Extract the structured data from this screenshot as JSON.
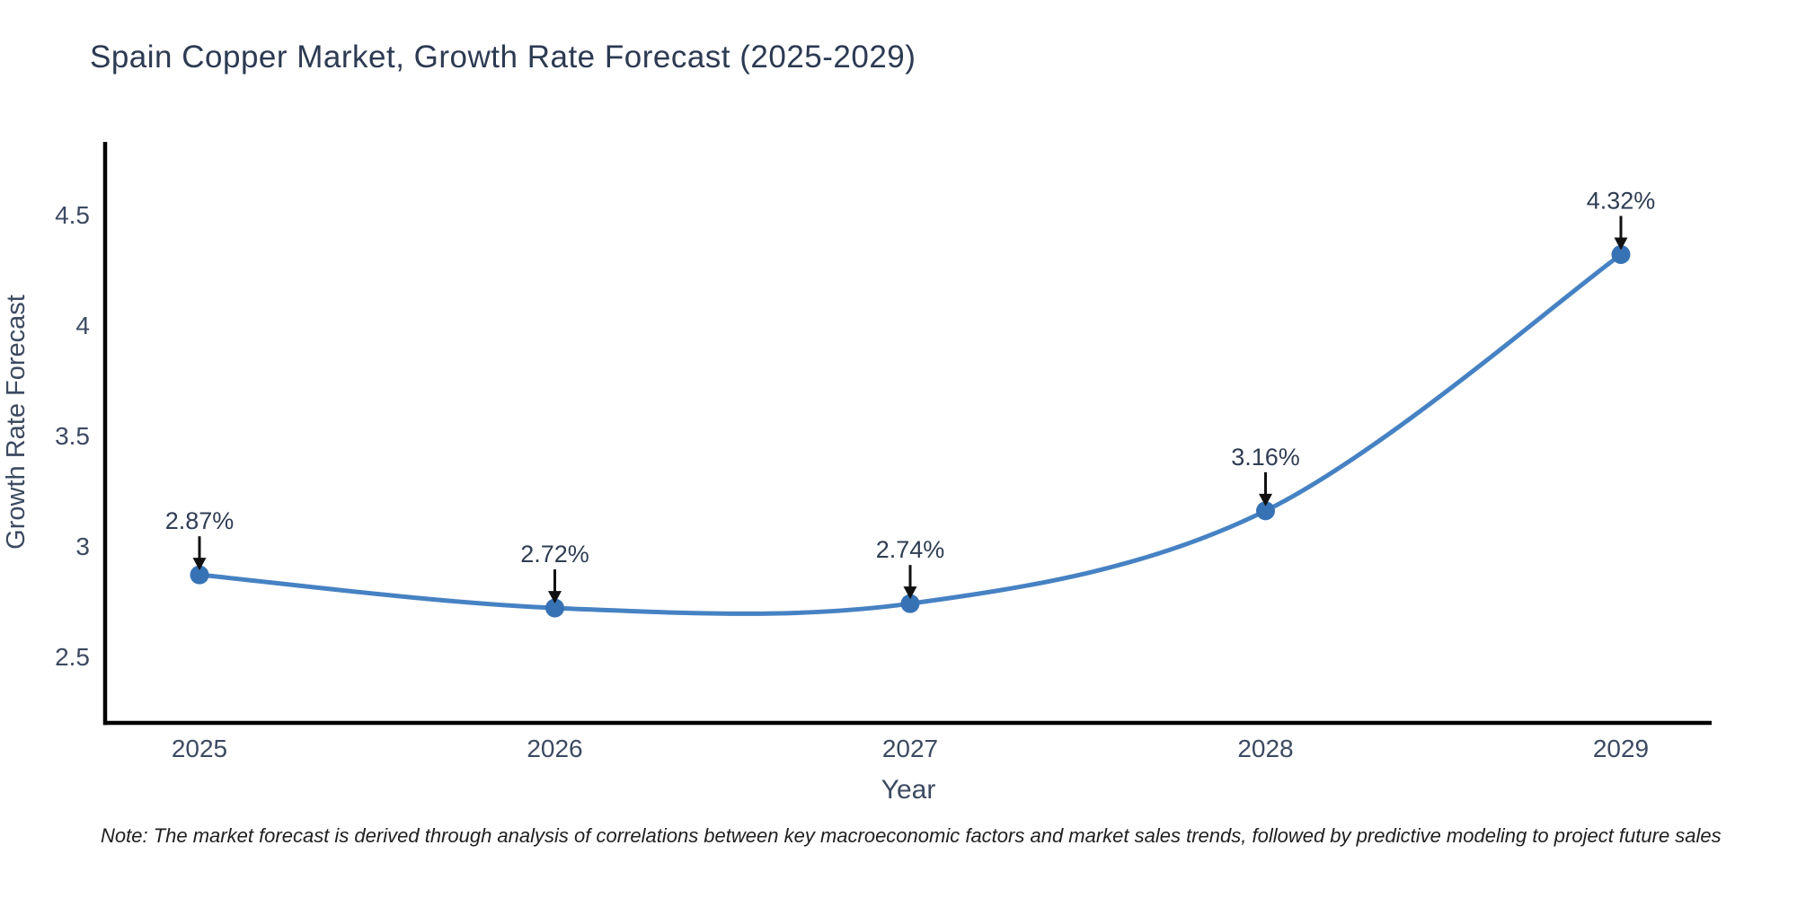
{
  "title": "Spain Copper Market, Growth Rate Forecast (2025-2029)",
  "note": "Note: The market forecast is derived through analysis of correlations between key macroeconomic factors and market sales trends, followed by predictive modeling to project future sales",
  "colors": {
    "background": "#ffffff",
    "axis_line": "#000000",
    "series_line": "#4682c3",
    "marker_fill": "#3773b4",
    "title_text": "#2c3a52",
    "axis_title_text": "#3c4a61",
    "tick_text": "#3c4a61",
    "annotation_text": "#2f3d52",
    "annotation_arrow": "#111111",
    "note_text": "#1f1f1f"
  },
  "chart_data": {
    "type": "line",
    "title": "Spain Copper Market, Growth Rate Forecast (2025-2029)",
    "x": [
      2025,
      2026,
      2027,
      2028,
      2029
    ],
    "values": [
      2.87,
      2.72,
      2.74,
      3.16,
      4.32
    ],
    "point_labels": [
      "2.87%",
      "2.72%",
      "2.74%",
      "3.16%",
      "4.32%"
    ],
    "xticks": [
      "2025",
      "2026",
      "2027",
      "2028",
      "2029"
    ],
    "yticks": [
      2.5,
      3,
      3.5,
      4,
      4.5
    ],
    "ytick_labels": [
      "2.5",
      "3",
      "3.5",
      "4",
      "4.5"
    ],
    "xlabel": "Year",
    "ylabel": "Growth Rate Forecast",
    "ylim": [
      2.2,
      4.83
    ],
    "grid": false,
    "legend": null,
    "annotation_arrow_direction": "down",
    "marker_shape": "circle",
    "line_smoothing": "spline"
  }
}
